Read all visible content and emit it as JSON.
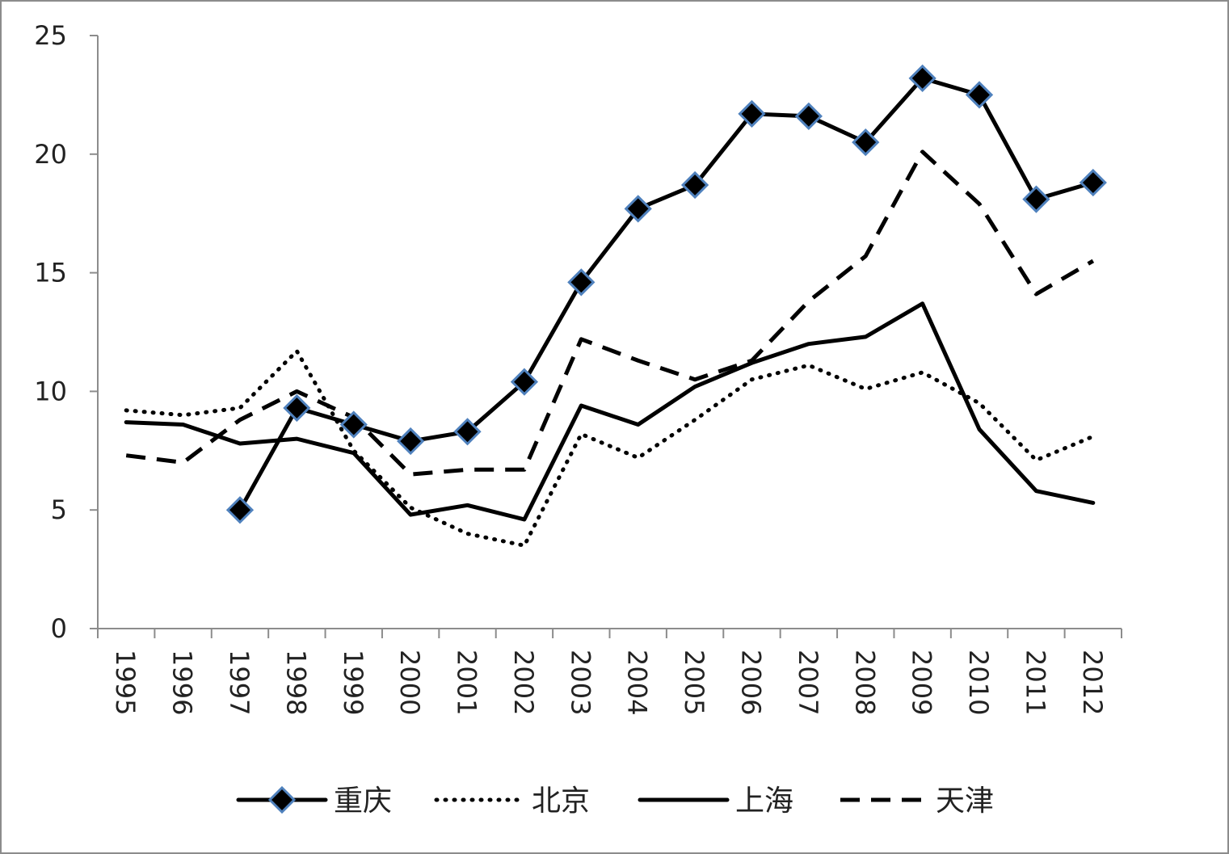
{
  "chart_data": {
    "type": "line",
    "title": "",
    "xlabel": "",
    "ylabel": "",
    "categories": [
      "1995",
      "1996",
      "1997",
      "1998",
      "1999",
      "2000",
      "2001",
      "2002",
      "2003",
      "2004",
      "2005",
      "2006",
      "2007",
      "2008",
      "2009",
      "2010",
      "2011",
      "2012"
    ],
    "ylim": [
      0,
      25
    ],
    "yticks": [
      0,
      5,
      10,
      15,
      20,
      25
    ],
    "y_tick_labels": [
      "0",
      "5",
      "10",
      "15",
      "20",
      "25"
    ],
    "grid": false,
    "legend_position": "bottom",
    "series": [
      {
        "name": "重庆",
        "style": "solid-marker",
        "color": "#000000",
        "marker_stroke": "#4f81bd",
        "values": [
          null,
          null,
          5.0,
          9.3,
          8.6,
          7.9,
          8.3,
          10.4,
          14.6,
          17.7,
          18.7,
          21.7,
          21.6,
          20.5,
          23.2,
          22.5,
          18.1,
          18.8
        ]
      },
      {
        "name": "北京",
        "style": "dotted",
        "color": "#000000",
        "values": [
          9.2,
          9.0,
          9.3,
          11.7,
          7.5,
          5.1,
          4.0,
          3.5,
          8.2,
          7.2,
          8.8,
          10.5,
          11.1,
          10.1,
          10.8,
          9.5,
          7.1,
          8.1
        ]
      },
      {
        "name": "上海",
        "style": "solid",
        "color": "#000000",
        "values": [
          8.7,
          8.6,
          7.8,
          8.0,
          7.4,
          4.8,
          5.2,
          4.6,
          9.4,
          8.6,
          10.2,
          11.2,
          12.0,
          12.3,
          13.7,
          8.4,
          5.8,
          5.3
        ]
      },
      {
        "name": "天津",
        "style": "dashed",
        "color": "#000000",
        "values": [
          7.3,
          7.0,
          8.8,
          10.0,
          8.9,
          6.5,
          6.7,
          6.7,
          12.2,
          11.3,
          10.5,
          11.3,
          13.8,
          15.7,
          20.1,
          17.9,
          14.1,
          15.5
        ]
      }
    ]
  }
}
